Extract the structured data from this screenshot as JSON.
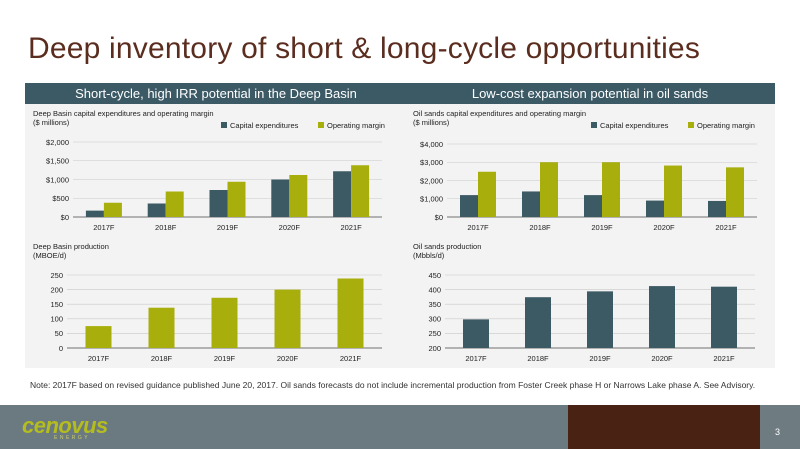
{
  "slide": {
    "title": "Deep inventory of short & long-cycle opportunities",
    "note": "Note: 2017F based on revised guidance published June 20, 2017. Oil sands forecasts do not include incremental production from Foster Creek phase H or Narrows Lake phase A. See Advisory.",
    "logo_text": "cenovus",
    "logo_subtext": "ENERGY",
    "page_number": "3"
  },
  "panels": {
    "left": {
      "header": "Short-cycle, high IRR potential in the Deep Basin"
    },
    "right": {
      "header": "Low-cost expansion potential in oil sands"
    }
  },
  "colors": {
    "capex": "#3c5a63",
    "margin": "#a8ae0c",
    "grid": "#c8c8c8",
    "axis": "#444444"
  },
  "chart_data": [
    {
      "id": "deep-basin-capex",
      "type": "bar",
      "title": "Deep Basin capital expenditures and operating margin",
      "unit_label": "($ millions)",
      "categories": [
        "2017F",
        "2018F",
        "2019F",
        "2020F",
        "2021F"
      ],
      "series": [
        {
          "name": "Capital expenditures",
          "values": [
            170,
            360,
            720,
            1000,
            1220
          ]
        },
        {
          "name": "Operating margin",
          "values": [
            380,
            680,
            940,
            1120,
            1380
          ]
        }
      ],
      "ylim": [
        0,
        2000
      ],
      "yticks": [
        0,
        500,
        1000,
        1500,
        2000
      ],
      "ytick_labels": [
        "$0",
        "$500",
        "$1,000",
        "$1,500",
        "$2,000"
      ],
      "legend": "top-right",
      "grid": true
    },
    {
      "id": "oil-sands-capex",
      "type": "bar",
      "title": "Oil sands capital expenditures and operating margin",
      "unit_label": "($ millions)",
      "categories": [
        "2017F",
        "2018F",
        "2019F",
        "2020F",
        "2021F"
      ],
      "series": [
        {
          "name": "Capital expenditures",
          "values": [
            1200,
            1400,
            1200,
            900,
            880
          ]
        },
        {
          "name": "Operating margin",
          "values": [
            2480,
            3000,
            3000,
            2820,
            2720
          ]
        }
      ],
      "ylim": [
        0,
        4000
      ],
      "yticks": [
        0,
        1000,
        2000,
        3000,
        4000
      ],
      "ytick_labels": [
        "$0",
        "$1,000",
        "$2,000",
        "$3,000",
        "$4,000"
      ],
      "legend": "top-right",
      "grid": true
    },
    {
      "id": "deep-basin-production",
      "type": "bar",
      "title": "Deep Basin production",
      "unit_label": "(MBOE/d)",
      "categories": [
        "2017F",
        "2018F",
        "2019F",
        "2020F",
        "2021F"
      ],
      "series": [
        {
          "name": "",
          "values": [
            75,
            138,
            172,
            200,
            238
          ]
        }
      ],
      "ylim": [
        0,
        250
      ],
      "yticks": [
        0,
        50,
        100,
        150,
        200,
        250
      ],
      "ytick_labels": [
        "0",
        "50",
        "100",
        "150",
        "200",
        "250"
      ],
      "grid": true
    },
    {
      "id": "oil-sands-production",
      "type": "bar",
      "title": "Oil sands production",
      "unit_label": "(Mbbls/d)",
      "categories": [
        "2017F",
        "2018F",
        "2019F",
        "2020F",
        "2021F"
      ],
      "series": [
        {
          "name": "",
          "values": [
            298,
            374,
            394,
            412,
            410
          ]
        }
      ],
      "ylim": [
        200,
        450
      ],
      "yticks": [
        200,
        250,
        300,
        350,
        400,
        450
      ],
      "ytick_labels": [
        "200",
        "250",
        "300",
        "350",
        "400",
        "450"
      ],
      "grid": true
    }
  ]
}
